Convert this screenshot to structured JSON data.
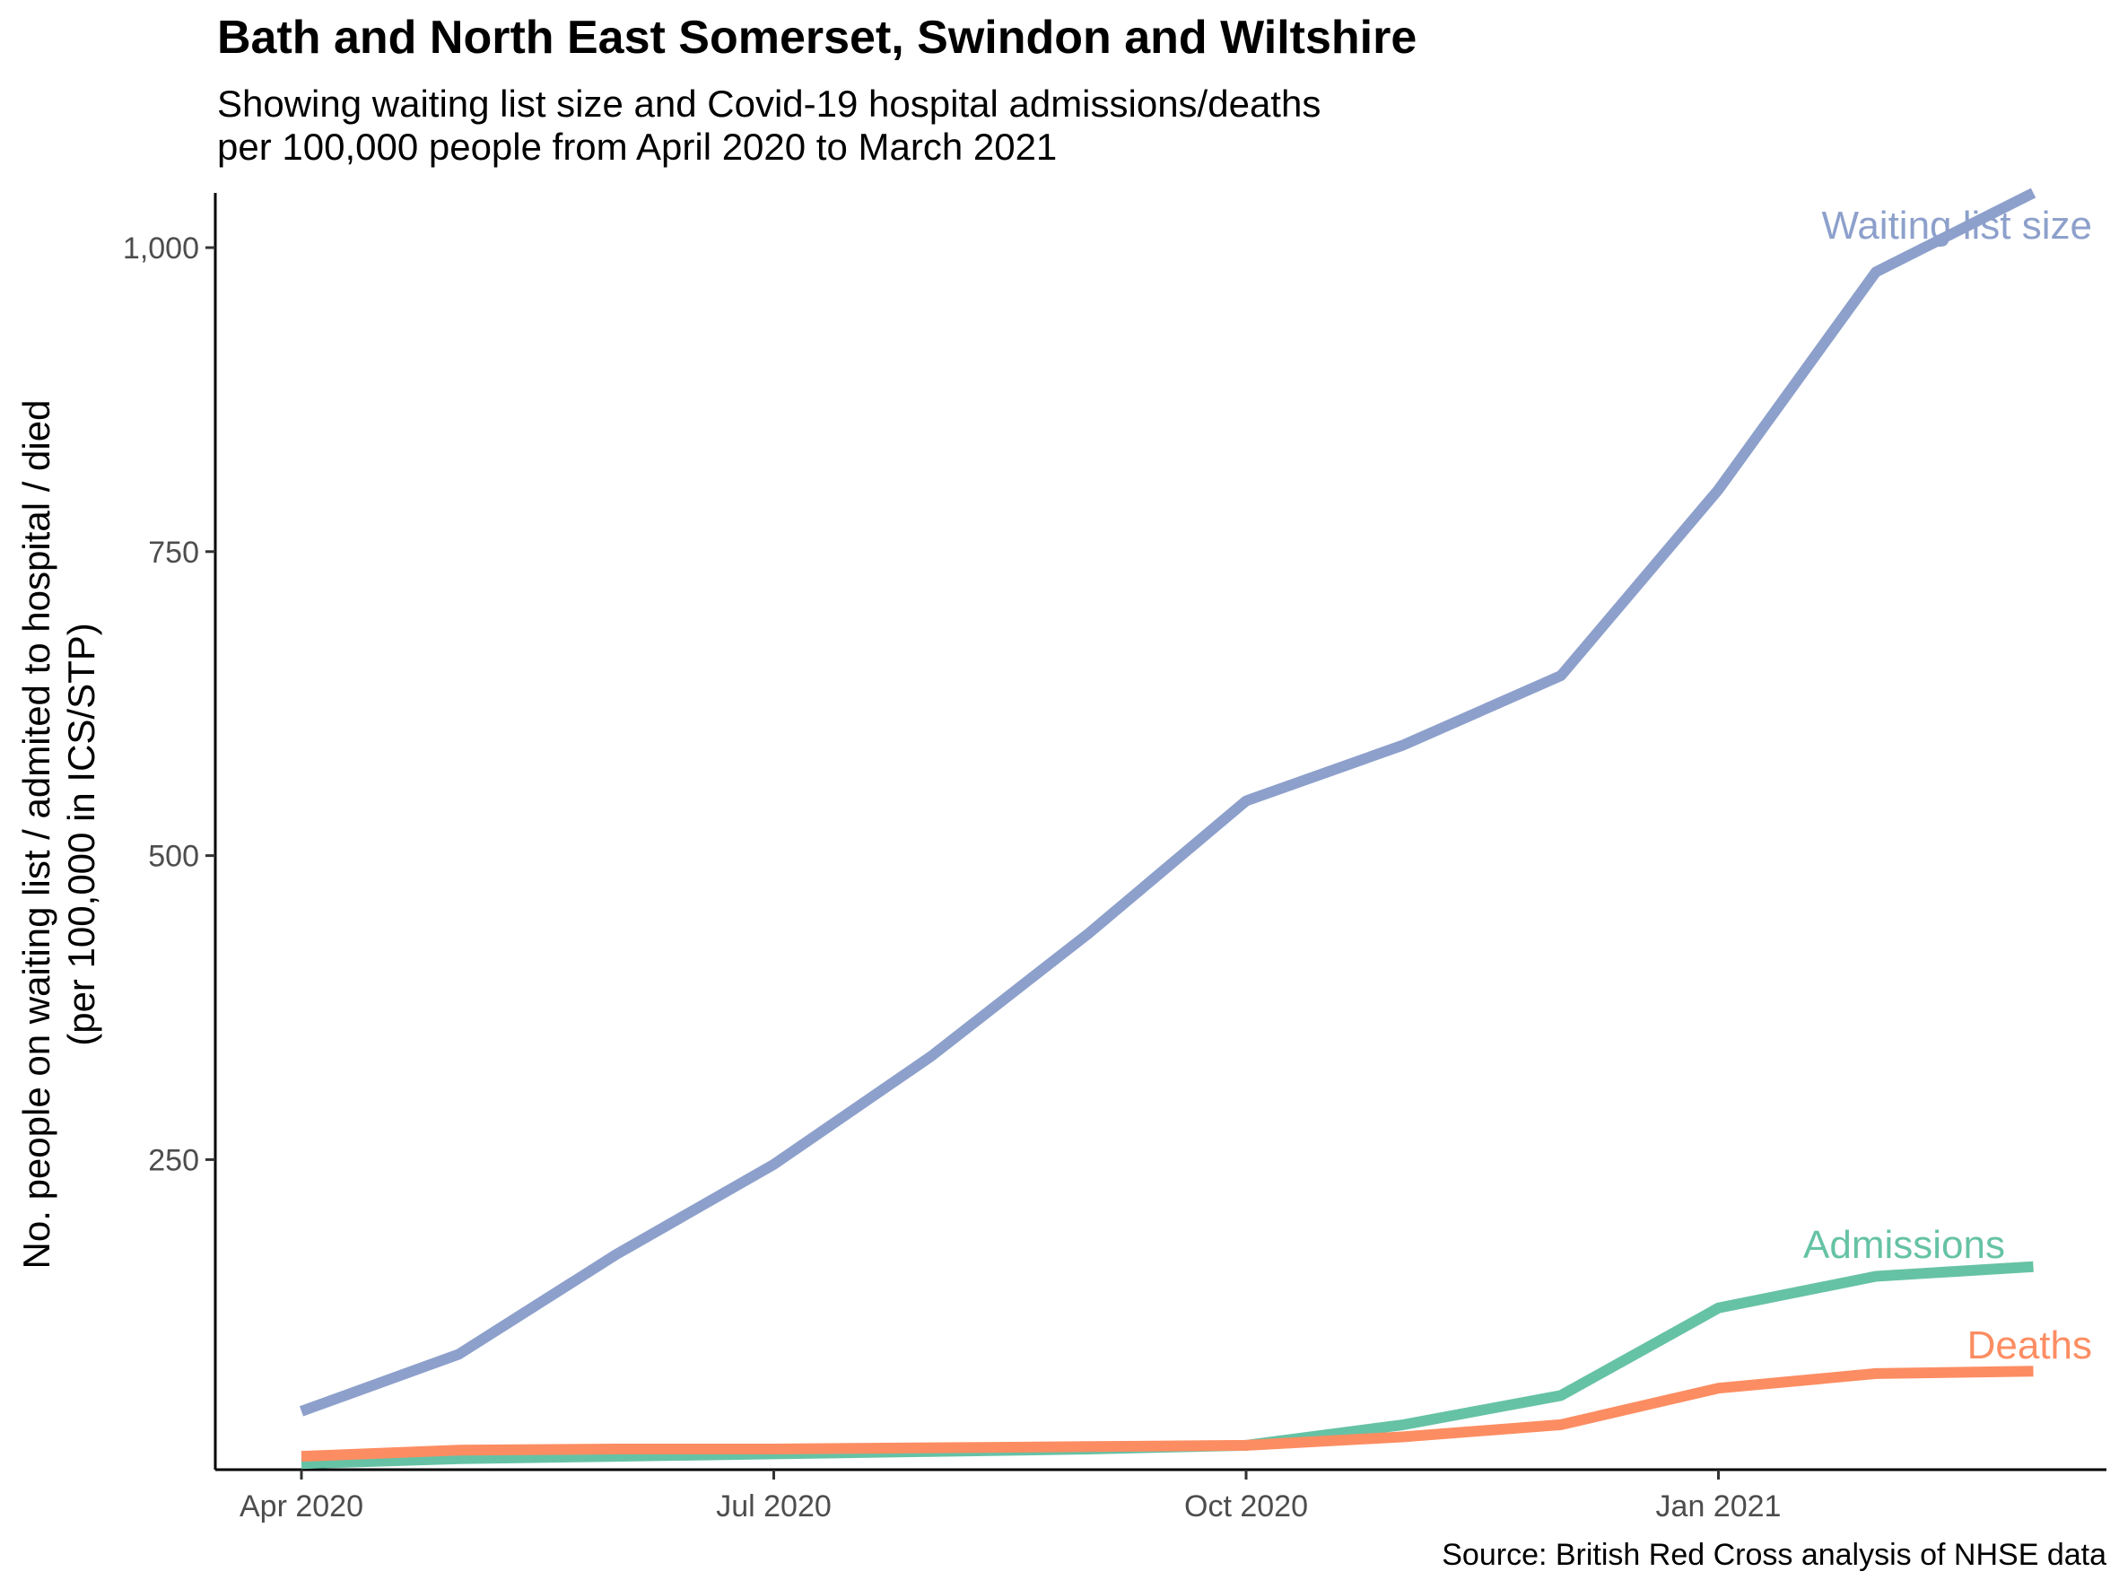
{
  "chart_data": {
    "type": "line",
    "title": "Bath and North East Somerset, Swindon and Wiltshire",
    "subtitle": "Showing waiting list size and Covid-19 hospital admissions/deaths\nper 100,000 people from April 2020 to March 2021",
    "caption": "Source: British Red Cross analysis of NHSE data",
    "xlabel": "",
    "ylabel_lines": [
      "No. people on waiting list / admited to hospital / died",
      "(per 100,000 in ICS/STP)"
    ],
    "x": [
      "2020-04",
      "2020-05",
      "2020-06",
      "2020-07",
      "2020-08",
      "2020-09",
      "2020-10",
      "2020-11",
      "2020-12",
      "2021-01",
      "2021-02",
      "2021-03"
    ],
    "x_ticks": [
      {
        "label": "Apr 2020",
        "x": "2020-04"
      },
      {
        "label": "Jul 2020",
        "x": "2020-07"
      },
      {
        "label": "Oct 2020",
        "x": "2020-10"
      },
      {
        "label": "Jan 2021",
        "x": "2021-01"
      }
    ],
    "y_ticks": [
      {
        "label": "250",
        "value": 250
      },
      {
        "label": "500",
        "value": 500
      },
      {
        "label": "750",
        "value": 750
      },
      {
        "label": "1,000",
        "value": 1000
      }
    ],
    "ylim": [
      -5,
      1045
    ],
    "grid": false,
    "legend": "direct labels at line ends",
    "series": [
      {
        "name": "Waiting list size",
        "color": "#8da0cb",
        "values": [
          43,
          90,
          172,
          246,
          335,
          436,
          545,
          591,
          648,
          801,
          980,
          1045
        ]
      },
      {
        "name": "Admissions",
        "color": "#66c2a5",
        "values": [
          0,
          4,
          6,
          8,
          10,
          12,
          15,
          32,
          56,
          128,
          154,
          162
        ]
      },
      {
        "name": "Deaths",
        "color": "#fc8d62",
        "values": [
          6,
          11,
          12,
          12,
          13,
          14,
          15,
          22,
          32,
          62,
          74,
          76
        ]
      }
    ]
  }
}
